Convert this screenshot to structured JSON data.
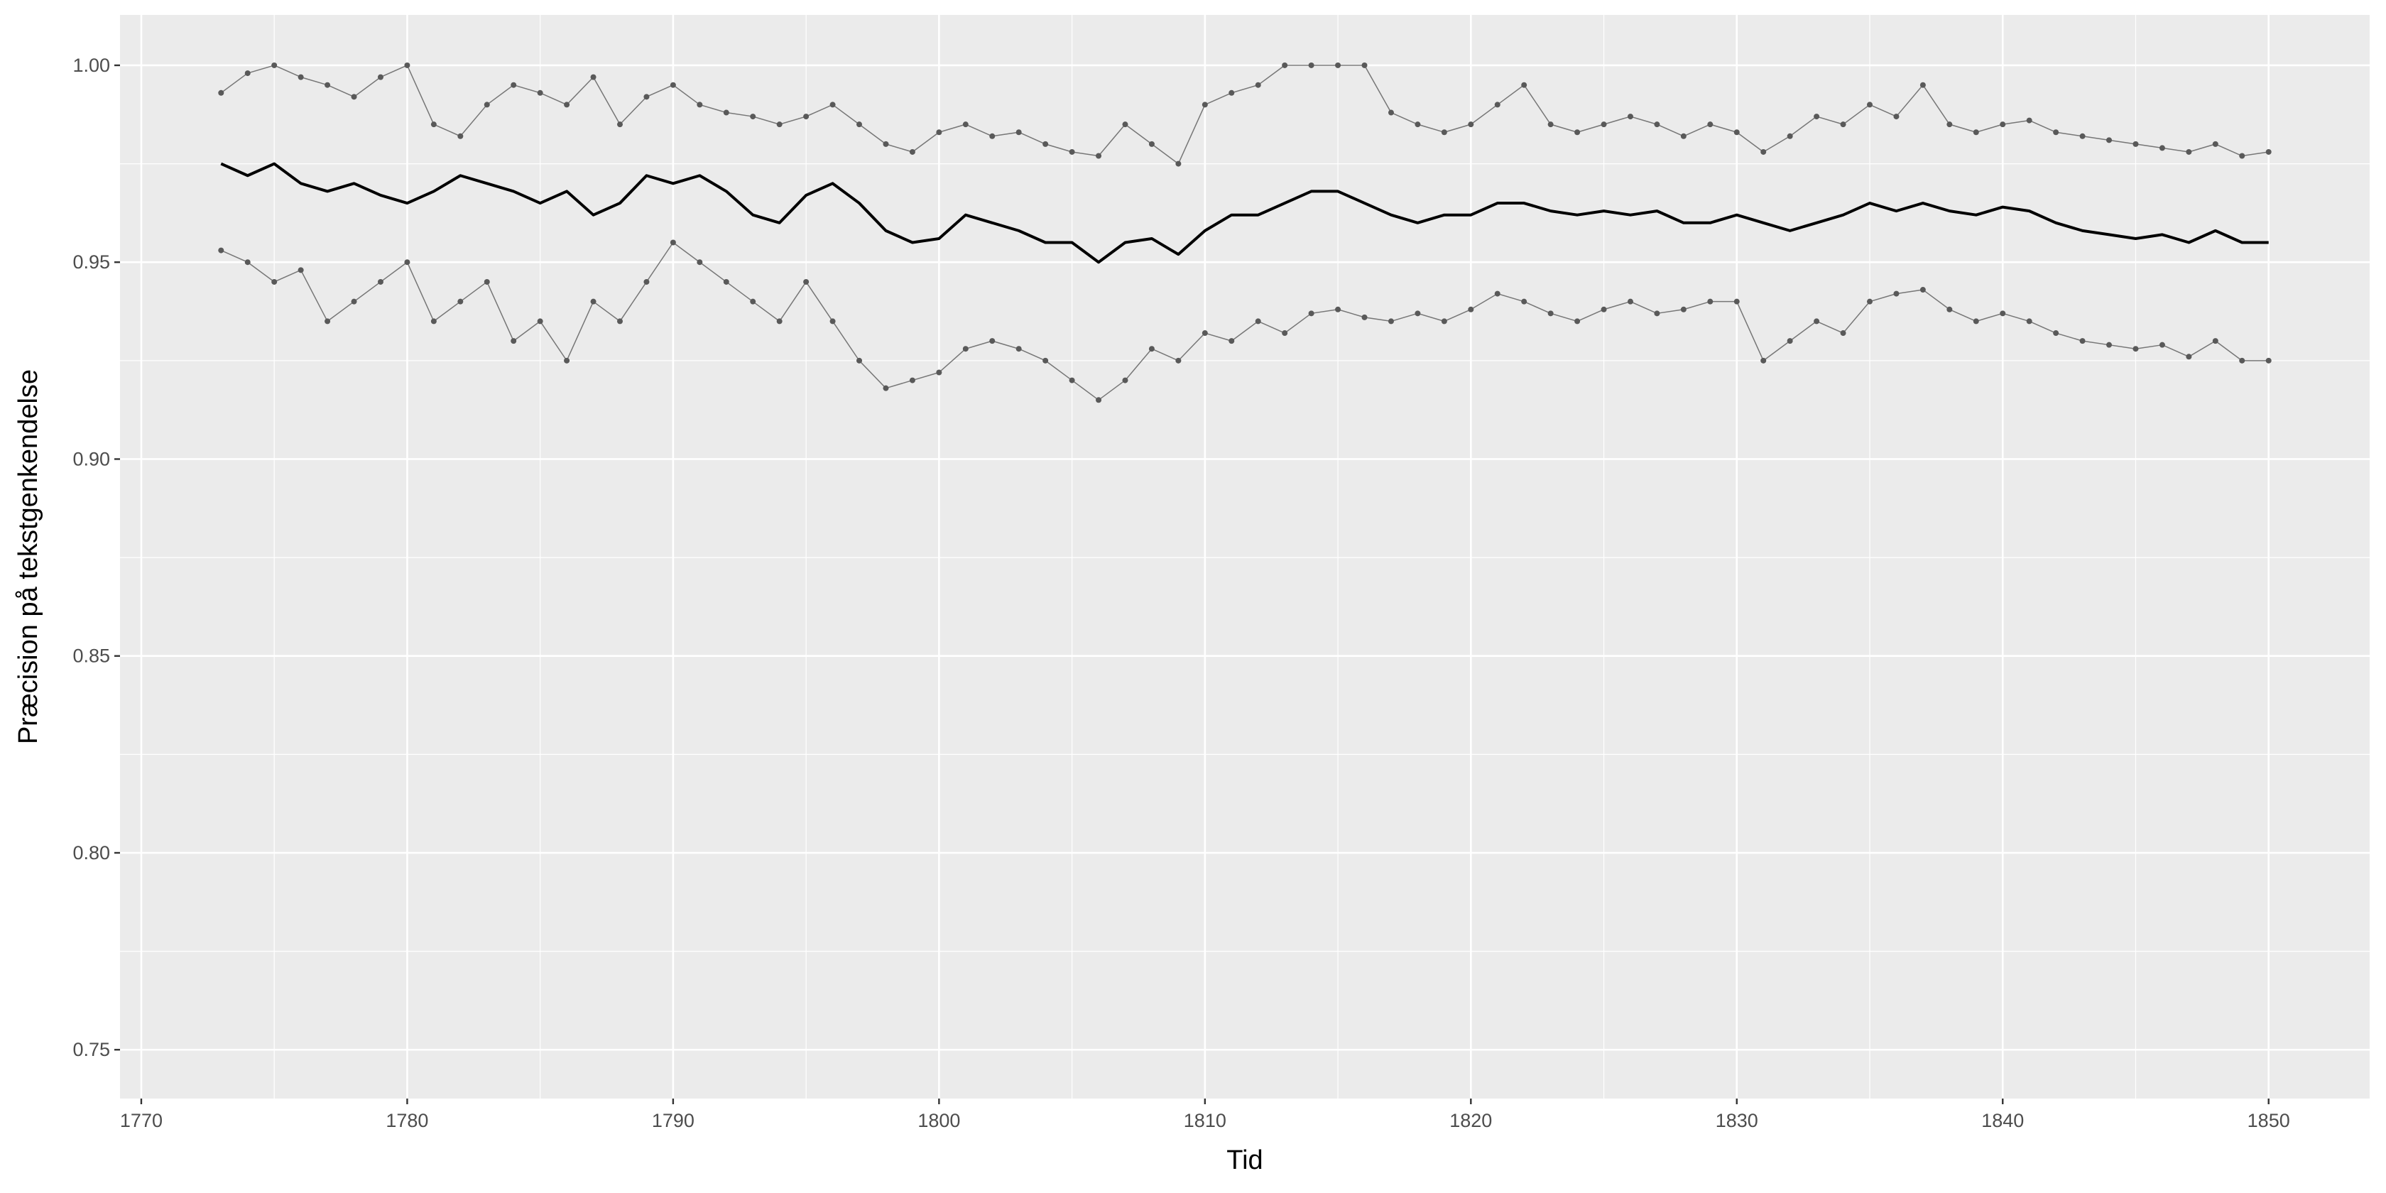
{
  "chart_data": {
    "type": "line",
    "x_label": "Tid",
    "y_label": "Præcision på tekstgenkendelse",
    "x": [
      1773,
      1774,
      1775,
      1776,
      1777,
      1778,
      1779,
      1780,
      1781,
      1782,
      1783,
      1784,
      1785,
      1786,
      1787,
      1788,
      1789,
      1790,
      1791,
      1792,
      1793,
      1794,
      1795,
      1796,
      1797,
      1798,
      1799,
      1800,
      1801,
      1802,
      1803,
      1804,
      1805,
      1806,
      1807,
      1808,
      1809,
      1810,
      1811,
      1812,
      1813,
      1814,
      1815,
      1816,
      1817,
      1818,
      1819,
      1820,
      1821,
      1822,
      1823,
      1824,
      1825,
      1826,
      1827,
      1828,
      1829,
      1830,
      1831,
      1832,
      1833,
      1834,
      1835,
      1836,
      1837,
      1838,
      1839,
      1840,
      1841,
      1842,
      1843,
      1844,
      1845,
      1846,
      1847,
      1848,
      1849,
      1850
    ],
    "series": [
      {
        "color": "#595959",
        "markers": true,
        "values": [
          0.993,
          0.998,
          1.0,
          0.997,
          0.995,
          0.992,
          0.997,
          1.0,
          0.985,
          0.982,
          0.99,
          0.995,
          0.993,
          0.99,
          0.997,
          0.985,
          0.992,
          0.995,
          0.99,
          0.988,
          0.987,
          0.985,
          0.987,
          0.99,
          0.985,
          0.98,
          0.978,
          0.983,
          0.985,
          0.982,
          0.983,
          0.98,
          0.978,
          0.977,
          0.985,
          0.98,
          0.975,
          0.99,
          0.993,
          0.995,
          1.0,
          1.0,
          1.0,
          1.0,
          0.988,
          0.985,
          0.983,
          0.985,
          0.99,
          0.995,
          0.985,
          0.983,
          0.985,
          0.987,
          0.985,
          0.982,
          0.985,
          0.983,
          0.978,
          0.982,
          0.987,
          0.985,
          0.99,
          0.987,
          0.995,
          0.985,
          0.983,
          0.985,
          0.986,
          0.983,
          0.982,
          0.981,
          0.98,
          0.979,
          0.978,
          0.98,
          0.977,
          0.978
        ]
      },
      {
        "color": "#000000",
        "markers": false,
        "values": [
          0.975,
          0.972,
          0.975,
          0.97,
          0.968,
          0.97,
          0.967,
          0.965,
          0.968,
          0.972,
          0.97,
          0.968,
          0.965,
          0.968,
          0.962,
          0.965,
          0.972,
          0.97,
          0.972,
          0.968,
          0.962,
          0.96,
          0.967,
          0.97,
          0.965,
          0.958,
          0.955,
          0.956,
          0.962,
          0.96,
          0.958,
          0.955,
          0.955,
          0.95,
          0.955,
          0.956,
          0.952,
          0.958,
          0.962,
          0.962,
          0.965,
          0.968,
          0.968,
          0.965,
          0.962,
          0.96,
          0.962,
          0.962,
          0.965,
          0.965,
          0.963,
          0.962,
          0.963,
          0.962,
          0.963,
          0.96,
          0.96,
          0.962,
          0.96,
          0.958,
          0.96,
          0.962,
          0.965,
          0.963,
          0.965,
          0.963,
          0.962,
          0.964,
          0.963,
          0.96,
          0.958,
          0.957,
          0.956,
          0.957,
          0.955,
          0.958,
          0.955,
          0.955
        ]
      },
      {
        "color": "#595959",
        "markers": true,
        "values": [
          0.953,
          0.95,
          0.945,
          0.948,
          0.935,
          0.94,
          0.945,
          0.95,
          0.935,
          0.94,
          0.945,
          0.93,
          0.935,
          0.925,
          0.94,
          0.935,
          0.945,
          0.955,
          0.95,
          0.945,
          0.94,
          0.935,
          0.945,
          0.935,
          0.925,
          0.918,
          0.92,
          0.922,
          0.928,
          0.93,
          0.928,
          0.925,
          0.92,
          0.915,
          0.92,
          0.928,
          0.925,
          0.932,
          0.93,
          0.935,
          0.932,
          0.937,
          0.938,
          0.936,
          0.935,
          0.937,
          0.935,
          0.938,
          0.942,
          0.94,
          0.937,
          0.935,
          0.938,
          0.94,
          0.937,
          0.938,
          0.94,
          0.94,
          0.925,
          0.93,
          0.935,
          0.932,
          0.94,
          0.942,
          0.943,
          0.938,
          0.935,
          0.937,
          0.935,
          0.932,
          0.93,
          0.929,
          0.928,
          0.929,
          0.926,
          0.93,
          0.925,
          0.925
        ]
      }
    ],
    "xlim": [
      1769.2,
      1853.8
    ],
    "ylim": [
      0.7376,
      1.0128
    ],
    "xticks": [
      1770,
      1780,
      1790,
      1800,
      1810,
      1820,
      1830,
      1840,
      1850
    ],
    "yticks": [
      {
        "value": 0.75,
        "label": "0.75"
      },
      {
        "value": 0.8,
        "label": "0.80"
      },
      0.85,
      {
        "value": 0.9,
        "label": "0.90"
      },
      0.95,
      {
        "value": 1,
        "label": "1.00"
      }
    ],
    "grid": true
  }
}
